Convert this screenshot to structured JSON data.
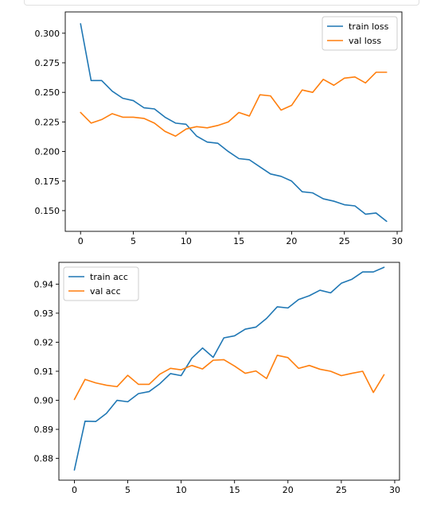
{
  "colors": {
    "train": "#1f77b4",
    "val": "#ff7f0e",
    "axis": "#000000",
    "legend_border": "#cccccc"
  },
  "chart_data": [
    {
      "type": "line",
      "title": "",
      "xlabel": "",
      "ylabel": "",
      "xlim": [
        -1.45,
        30.45
      ],
      "ylim": [
        0.1325,
        0.318
      ],
      "xticks": [
        0,
        5,
        10,
        15,
        20,
        25,
        30
      ],
      "yticks": [
        0.15,
        0.175,
        0.2,
        0.225,
        0.25,
        0.275,
        0.3
      ],
      "ytick_labels": [
        "0.150",
        "0.175",
        "0.200",
        "0.225",
        "0.250",
        "0.275",
        "0.300"
      ],
      "legend_position": "upper right",
      "x": [
        0,
        1,
        2,
        3,
        4,
        5,
        6,
        7,
        8,
        9,
        10,
        11,
        12,
        13,
        14,
        15,
        16,
        17,
        18,
        19,
        20,
        21,
        22,
        23,
        24,
        25,
        26,
        27,
        28,
        29
      ],
      "series": [
        {
          "name": "train loss",
          "color": "#1f77b4",
          "values": [
            0.308,
            0.26,
            0.26,
            0.251,
            0.245,
            0.243,
            0.237,
            0.236,
            0.229,
            0.224,
            0.223,
            0.213,
            0.208,
            0.207,
            0.2,
            0.194,
            0.193,
            0.187,
            0.181,
            0.179,
            0.175,
            0.166,
            0.165,
            0.16,
            0.158,
            0.155,
            0.154,
            0.147,
            0.148,
            0.141
          ]
        },
        {
          "name": "val loss",
          "color": "#ff7f0e",
          "values": [
            0.233,
            0.224,
            0.227,
            0.232,
            0.229,
            0.229,
            0.228,
            0.224,
            0.217,
            0.213,
            0.219,
            0.221,
            0.22,
            0.222,
            0.225,
            0.233,
            0.23,
            0.248,
            0.247,
            0.235,
            0.239,
            0.252,
            0.25,
            0.261,
            0.256,
            0.262,
            0.263,
            0.258,
            0.267,
            0.267
          ]
        }
      ]
    },
    {
      "type": "line",
      "title": "",
      "xlabel": "",
      "ylabel": "",
      "xlim": [
        -1.45,
        30.45
      ],
      "ylim": [
        0.8725,
        0.9475
      ],
      "xticks": [
        0,
        5,
        10,
        15,
        20,
        25,
        30
      ],
      "yticks": [
        0.88,
        0.89,
        0.9,
        0.91,
        0.92,
        0.93,
        0.94
      ],
      "ytick_labels": [
        "0.88",
        "0.89",
        "0.90",
        "0.91",
        "0.92",
        "0.93",
        "0.94"
      ],
      "legend_position": "upper left",
      "x": [
        0,
        1,
        2,
        3,
        4,
        5,
        6,
        7,
        8,
        9,
        10,
        11,
        12,
        13,
        14,
        15,
        16,
        17,
        18,
        19,
        20,
        21,
        22,
        23,
        24,
        25,
        26,
        27,
        28,
        29
      ],
      "series": [
        {
          "name": "train acc",
          "color": "#1f77b4",
          "values": [
            0.876,
            0.8928,
            0.8927,
            0.8955,
            0.9,
            0.8995,
            0.9023,
            0.903,
            0.9057,
            0.9092,
            0.9085,
            0.9145,
            0.918,
            0.9148,
            0.9215,
            0.9222,
            0.9245,
            0.9252,
            0.9282,
            0.9322,
            0.9318,
            0.9347,
            0.936,
            0.9379,
            0.937,
            0.9403,
            0.9417,
            0.9442,
            0.9442,
            0.9458
          ]
        },
        {
          "name": "val acc",
          "color": "#ff7f0e",
          "values": [
            0.9003,
            0.9072,
            0.906,
            0.9052,
            0.9047,
            0.9086,
            0.9055,
            0.9055,
            0.909,
            0.911,
            0.9105,
            0.912,
            0.9108,
            0.9138,
            0.914,
            0.9118,
            0.9093,
            0.9101,
            0.9075,
            0.9155,
            0.9147,
            0.911,
            0.912,
            0.9107,
            0.91,
            0.9085,
            0.9093,
            0.91,
            0.9027,
            0.9088
          ]
        }
      ]
    }
  ]
}
